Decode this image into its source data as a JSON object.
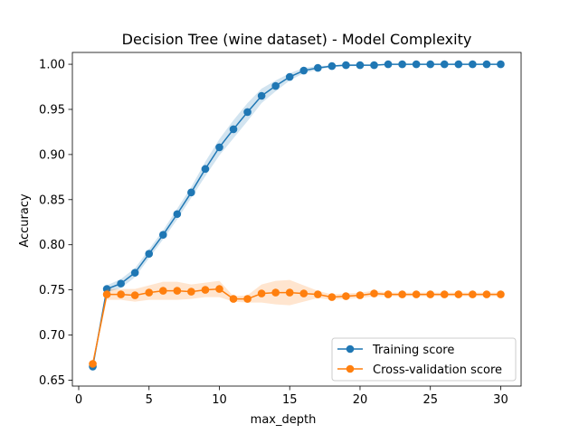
{
  "chart_data": {
    "type": "line",
    "title": "Decision Tree (wine dataset) - Model Complexity",
    "xlabel": "max_depth",
    "ylabel": "Accuracy",
    "xlim": [
      -0.45,
      31.45
    ],
    "ylim": [
      0.6434,
      1.0131
    ],
    "xticks": [
      0,
      5,
      10,
      15,
      20,
      25,
      30
    ],
    "yticks": [
      0.65,
      0.7,
      0.75,
      0.8,
      0.85,
      0.9,
      0.95,
      1.0
    ],
    "ytick_labels": [
      "0.65",
      "0.70",
      "0.75",
      "0.80",
      "0.85",
      "0.90",
      "0.95",
      "1.00"
    ],
    "grid": false,
    "legend_position": "lower-right",
    "x": [
      1,
      2,
      3,
      4,
      5,
      6,
      7,
      8,
      9,
      10,
      11,
      12,
      13,
      14,
      15,
      16,
      17,
      18,
      19,
      20,
      21,
      22,
      23,
      24,
      25,
      26,
      27,
      28,
      29,
      30
    ],
    "series": [
      {
        "name": "Training score",
        "color": "#1f77b4",
        "values": [
          0.665,
          0.751,
          0.757,
          0.769,
          0.79,
          0.811,
          0.834,
          0.858,
          0.884,
          0.908,
          0.928,
          0.947,
          0.965,
          0.976,
          0.986,
          0.993,
          0.996,
          0.998,
          0.999,
          0.999,
          0.999,
          1.0,
          1.0,
          1.0,
          1.0,
          1.0,
          1.0,
          1.0,
          1.0,
          1.0
        ],
        "std": [
          0.002,
          0.004,
          0.005,
          0.005,
          0.005,
          0.005,
          0.006,
          0.006,
          0.008,
          0.009,
          0.01,
          0.01,
          0.008,
          0.006,
          0.004,
          0.003,
          0.002,
          0.001,
          0.001,
          0.001,
          0.0005,
          0,
          0,
          0,
          0,
          0,
          0,
          0,
          0,
          0
        ]
      },
      {
        "name": "Cross-validation score",
        "color": "#ff7f0e",
        "values": [
          0.668,
          0.745,
          0.745,
          0.744,
          0.747,
          0.749,
          0.749,
          0.748,
          0.75,
          0.751,
          0.74,
          0.74,
          0.746,
          0.747,
          0.747,
          0.746,
          0.745,
          0.742,
          0.743,
          0.744,
          0.746,
          0.745,
          0.745,
          0.745,
          0.745,
          0.745,
          0.745,
          0.745,
          0.745,
          0.745
        ],
        "std": [
          0.002,
          0.006,
          0.006,
          0.007,
          0.008,
          0.01,
          0.01,
          0.008,
          0.008,
          0.009,
          0.003,
          0.004,
          0.01,
          0.013,
          0.014,
          0.009,
          0.004,
          0.003,
          0.003,
          0.003,
          0.003,
          0.002,
          0.002,
          0.002,
          0.002,
          0.002,
          0.002,
          0.002,
          0.002,
          0.002
        ]
      }
    ]
  }
}
